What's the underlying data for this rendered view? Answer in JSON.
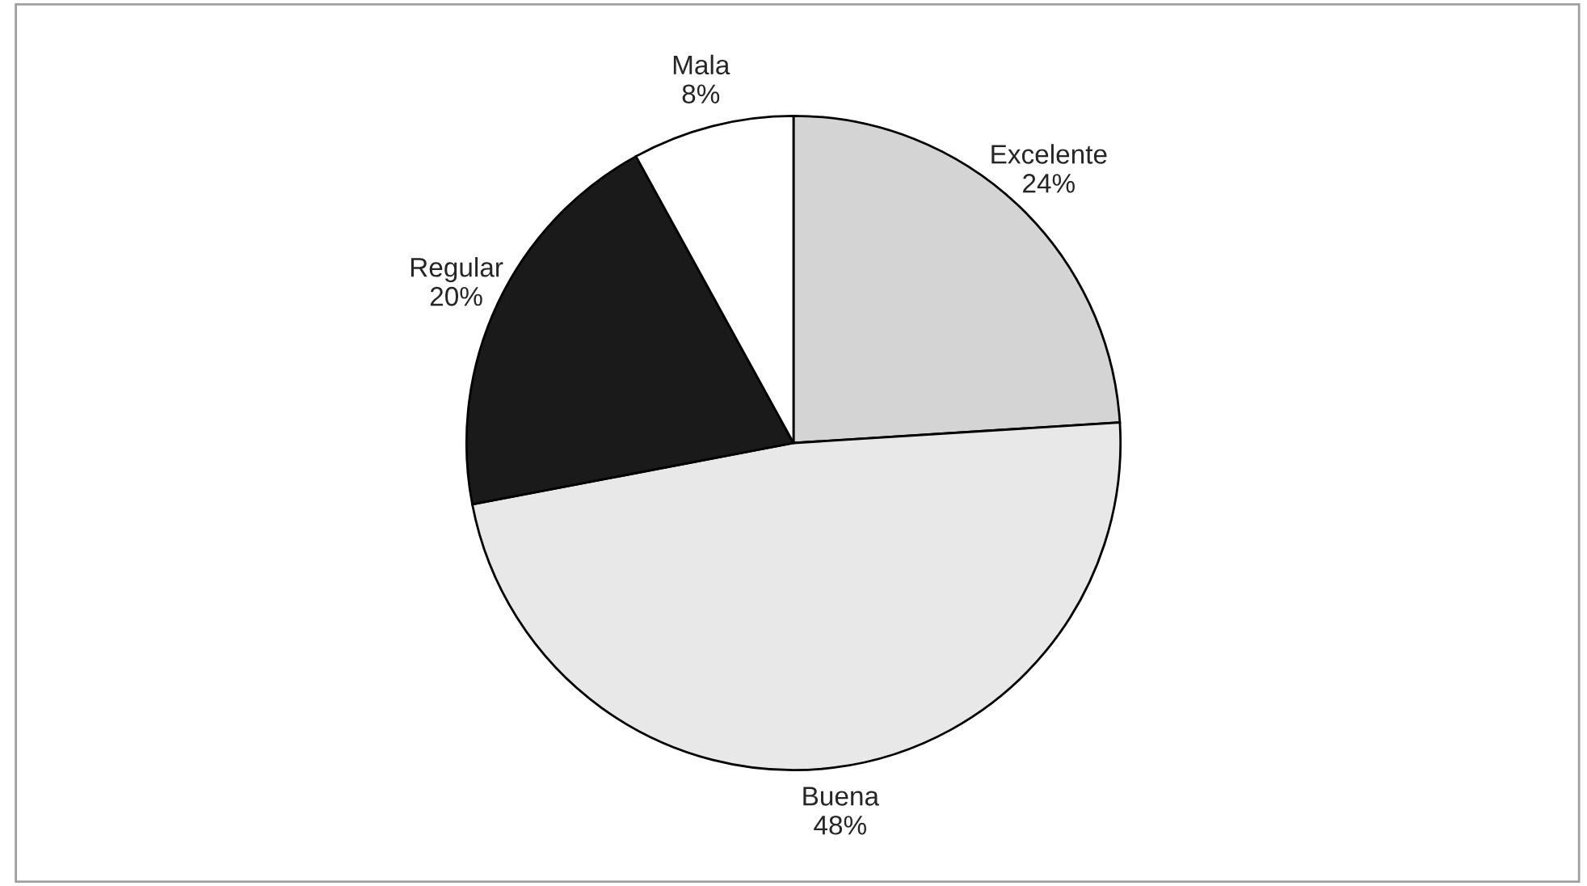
{
  "chart_data": {
    "type": "pie",
    "categories": [
      "Excelente",
      "Buena",
      "Regular",
      "Mala"
    ],
    "values": [
      24,
      48,
      20,
      8
    ],
    "value_labels": [
      "24%",
      "48%",
      "20%",
      "8%"
    ],
    "colors": [
      "#d4d4d4",
      "#e8e8e8",
      "#1a1a1a",
      "#ffffff"
    ],
    "legend": false
  }
}
